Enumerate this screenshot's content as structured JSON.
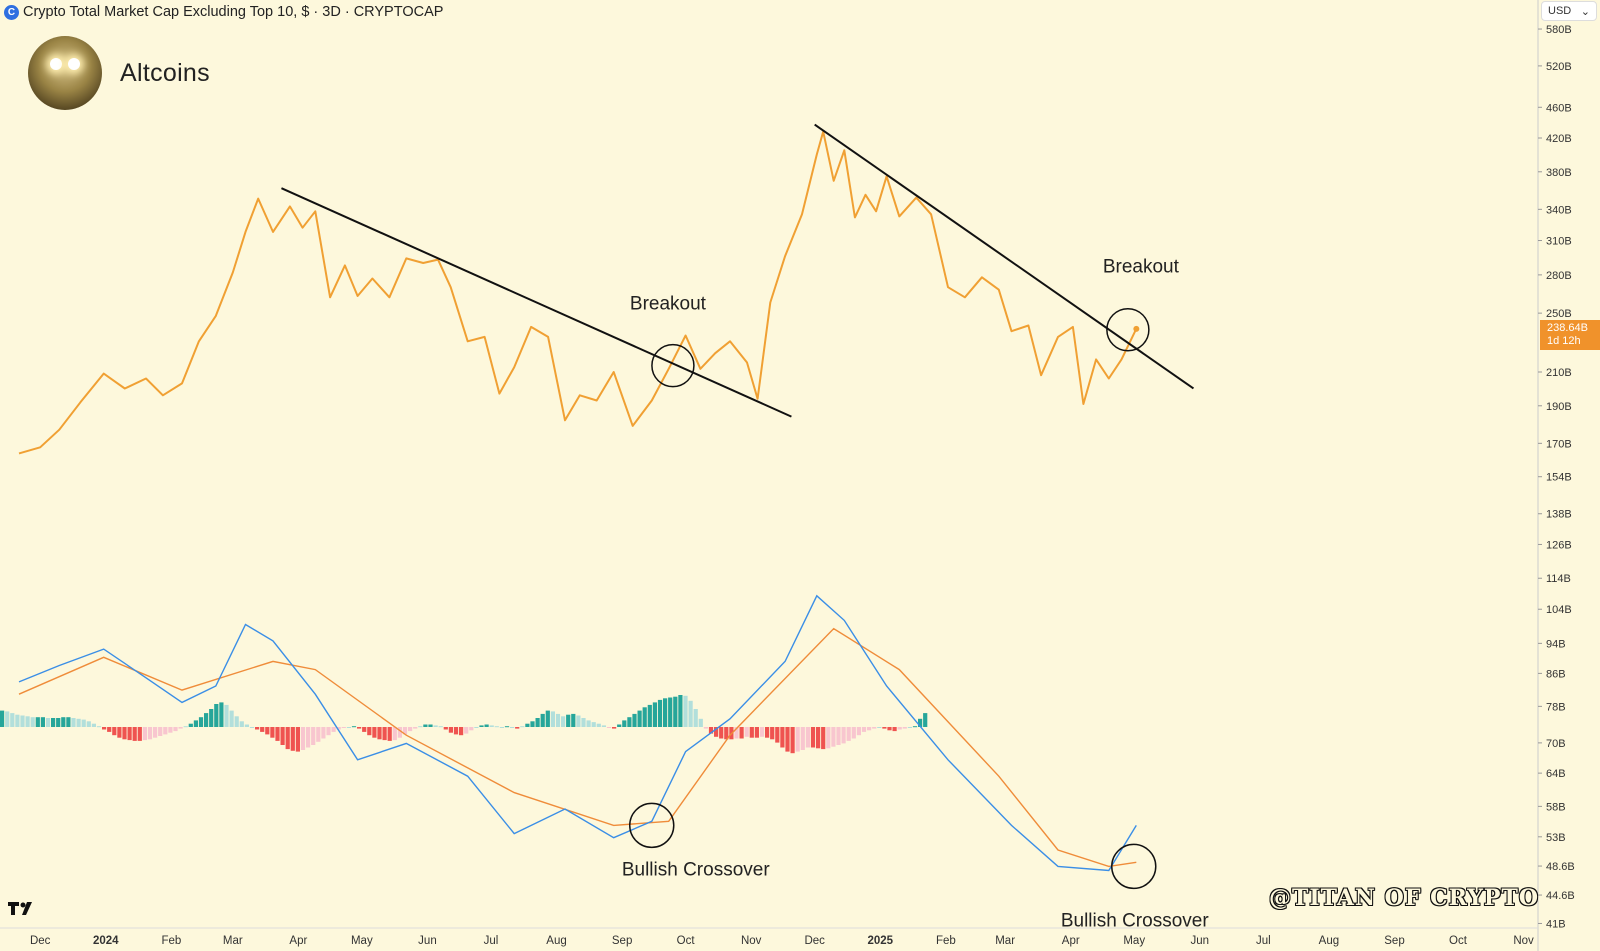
{
  "header": {
    "title": "Crypto Total Market Cap Excluding Top 10, $ · 3D · CRYPTOCAP",
    "currency": "USD"
  },
  "brand": {
    "name": "Altcoins"
  },
  "watermark": "@TITAN OF CRYPTO",
  "price_badge": {
    "value": "238.64B",
    "countdown": "1d 12h"
  },
  "colors": {
    "background": "#fdf8dc",
    "price_line": "#f0a033",
    "macd_line": "#3a8ee6",
    "signal_line": "#ef8c3a",
    "hist_pos_strong": "#26a69a",
    "hist_pos_weak": "#b2dfdb",
    "hist_neg_strong": "#ef5350",
    "hist_neg_weak": "#f8c6cf"
  },
  "chart_data": [
    {
      "type": "line",
      "scale": "log",
      "series": [
        {
          "values": [
            {
              "x": "2023-11-21",
              "y": 165
            },
            {
              "x": "2023-12-01",
              "y": 168
            },
            {
              "x": "2023-12-10",
              "y": 177
            },
            {
              "x": "2023-12-20",
              "y": 192
            },
            {
              "x": "2023-12-31",
              "y": 209
            },
            {
              "x": "2024-01-10",
              "y": 200
            },
            {
              "x": "2024-01-20",
              "y": 206
            },
            {
              "x": "2024-01-28",
              "y": 196
            },
            {
              "x": "2024-02-06",
              "y": 203
            },
            {
              "x": "2024-02-14",
              "y": 230
            },
            {
              "x": "2024-02-22",
              "y": 248
            },
            {
              "x": "2024-03-01",
              "y": 282
            },
            {
              "x": "2024-03-07",
              "y": 318
            },
            {
              "x": "2024-03-13",
              "y": 351
            },
            {
              "x": "2024-03-20",
              "y": 318
            },
            {
              "x": "2024-03-28",
              "y": 343
            },
            {
              "x": "2024-04-03",
              "y": 322
            },
            {
              "x": "2024-04-09",
              "y": 338
            },
            {
              "x": "2024-04-16",
              "y": 262
            },
            {
              "x": "2024-04-23",
              "y": 288
            },
            {
              "x": "2024-04-29",
              "y": 263
            },
            {
              "x": "2024-05-06",
              "y": 277
            },
            {
              "x": "2024-05-14",
              "y": 262
            },
            {
              "x": "2024-05-22",
              "y": 294
            },
            {
              "x": "2024-05-30",
              "y": 290
            },
            {
              "x": "2024-06-06",
              "y": 293
            },
            {
              "x": "2024-06-12",
              "y": 270
            },
            {
              "x": "2024-06-20",
              "y": 230
            },
            {
              "x": "2024-06-28",
              "y": 233
            },
            {
              "x": "2024-07-05",
              "y": 197
            },
            {
              "x": "2024-07-12",
              "y": 213
            },
            {
              "x": "2024-07-20",
              "y": 240
            },
            {
              "x": "2024-07-28",
              "y": 233
            },
            {
              "x": "2024-08-05",
              "y": 182
            },
            {
              "x": "2024-08-12",
              "y": 196
            },
            {
              "x": "2024-08-20",
              "y": 193
            },
            {
              "x": "2024-08-28",
              "y": 210
            },
            {
              "x": "2024-09-06",
              "y": 179
            },
            {
              "x": "2024-09-15",
              "y": 193
            },
            {
              "x": "2024-09-23",
              "y": 212
            },
            {
              "x": "2024-10-01",
              "y": 234
            },
            {
              "x": "2024-10-08",
              "y": 212
            },
            {
              "x": "2024-10-15",
              "y": 222
            },
            {
              "x": "2024-10-22",
              "y": 230
            },
            {
              "x": "2024-10-30",
              "y": 216
            },
            {
              "x": "2024-11-04",
              "y": 194
            },
            {
              "x": "2024-11-10",
              "y": 258
            },
            {
              "x": "2024-11-17",
              "y": 296
            },
            {
              "x": "2024-11-25",
              "y": 335
            },
            {
              "x": "2024-12-02",
              "y": 400
            },
            {
              "x": "2024-12-05",
              "y": 428
            },
            {
              "x": "2024-12-10",
              "y": 370
            },
            {
              "x": "2024-12-15",
              "y": 405
            },
            {
              "x": "2024-12-20",
              "y": 332
            },
            {
              "x": "2024-12-25",
              "y": 355
            },
            {
              "x": "2024-12-30",
              "y": 338
            },
            {
              "x": "2025-01-04",
              "y": 375
            },
            {
              "x": "2025-01-10",
              "y": 333
            },
            {
              "x": "2025-01-18",
              "y": 352
            },
            {
              "x": "2025-01-25",
              "y": 335
            },
            {
              "x": "2025-02-02",
              "y": 270
            },
            {
              "x": "2025-02-10",
              "y": 262
            },
            {
              "x": "2025-02-18",
              "y": 278
            },
            {
              "x": "2025-02-26",
              "y": 268
            },
            {
              "x": "2025-03-04",
              "y": 237
            },
            {
              "x": "2025-03-12",
              "y": 241
            },
            {
              "x": "2025-03-18",
              "y": 208
            },
            {
              "x": "2025-03-26",
              "y": 233
            },
            {
              "x": "2025-04-02",
              "y": 240
            },
            {
              "x": "2025-04-07",
              "y": 191
            },
            {
              "x": "2025-04-13",
              "y": 218
            },
            {
              "x": "2025-04-19",
              "y": 206
            },
            {
              "x": "2025-04-25",
              "y": 218
            },
            {
              "x": "2025-05-02",
              "y": 238.64
            }
          ]
        }
      ],
      "y_ticks": [
        "580B",
        "520B",
        "460B",
        "420B",
        "380B",
        "340B",
        "310B",
        "280B",
        "250B",
        "210B",
        "190B",
        "170B",
        "154B",
        "138B",
        "126B",
        "114B",
        "104B",
        "94B",
        "86B",
        "78B",
        "70B",
        "64B",
        "58B",
        "53B",
        "48.6B",
        "44.6B",
        "41B"
      ],
      "x_ticks": [
        "Dec",
        "2024",
        "Feb",
        "Mar",
        "Apr",
        "May",
        "Jun",
        "Jul",
        "Aug",
        "Sep",
        "Oct",
        "Nov",
        "Dec",
        "2025",
        "Feb",
        "Mar",
        "Apr",
        "May",
        "Jun",
        "Jul",
        "Aug",
        "Sep",
        "Oct",
        "Nov"
      ],
      "annotations": [
        {
          "text": "Breakout",
          "x": "2024-09-25",
          "y": 214
        },
        {
          "text": "Breakout",
          "x": "2025-04-28",
          "y": 238
        }
      ]
    },
    {
      "type": "line",
      "series": [
        {
          "values": [
            {
              "x": "2023-11-21",
              "y": 0.55
            },
            {
              "x": "2023-12-10",
              "y": 0.75
            },
            {
              "x": "2023-12-31",
              "y": 0.95
            },
            {
              "x": "2024-01-20",
              "y": 0.6
            },
            {
              "x": "2024-02-06",
              "y": 0.3
            },
            {
              "x": "2024-02-22",
              "y": 0.5
            },
            {
              "x": "2024-03-07",
              "y": 1.25
            },
            {
              "x": "2024-03-20",
              "y": 1.05
            },
            {
              "x": "2024-04-09",
              "y": 0.4
            },
            {
              "x": "2024-04-29",
              "y": -0.4
            },
            {
              "x": "2024-05-22",
              "y": -0.2
            },
            {
              "x": "2024-06-20",
              "y": -0.6
            },
            {
              "x": "2024-07-12",
              "y": -1.3
            },
            {
              "x": "2024-08-05",
              "y": -1.0
            },
            {
              "x": "2024-08-28",
              "y": -1.35
            },
            {
              "x": "2024-09-15",
              "y": -1.15
            },
            {
              "x": "2024-10-01",
              "y": -0.3
            },
            {
              "x": "2024-10-22",
              "y": 0.1
            },
            {
              "x": "2024-11-17",
              "y": 0.8
            },
            {
              "x": "2024-12-02",
              "y": 1.6
            },
            {
              "x": "2024-12-15",
              "y": 1.3
            },
            {
              "x": "2025-01-04",
              "y": 0.5
            },
            {
              "x": "2025-02-02",
              "y": -0.4
            },
            {
              "x": "2025-03-04",
              "y": -1.2
            },
            {
              "x": "2025-03-26",
              "y": -1.7
            },
            {
              "x": "2025-04-19",
              "y": -1.75
            },
            {
              "x": "2025-05-02",
              "y": -1.2
            }
          ]
        },
        {
          "values": [
            {
              "x": "2023-11-21",
              "y": 0.4
            },
            {
              "x": "2023-12-31",
              "y": 0.85
            },
            {
              "x": "2024-02-06",
              "y": 0.45
            },
            {
              "x": "2024-03-20",
              "y": 0.8
            },
            {
              "x": "2024-04-09",
              "y": 0.7
            },
            {
              "x": "2024-05-22",
              "y": -0.1
            },
            {
              "x": "2024-07-12",
              "y": -0.8
            },
            {
              "x": "2024-08-28",
              "y": -1.2
            },
            {
              "x": "2024-09-23",
              "y": -1.15
            },
            {
              "x": "2024-10-22",
              "y": -0.1
            },
            {
              "x": "2024-12-10",
              "y": 1.2
            },
            {
              "x": "2025-01-10",
              "y": 0.7
            },
            {
              "x": "2025-02-26",
              "y": -0.6
            },
            {
              "x": "2025-03-26",
              "y": -1.5
            },
            {
              "x": "2025-04-19",
              "y": -1.7
            },
            {
              "x": "2025-05-02",
              "y": -1.65
            }
          ]
        }
      ],
      "histogram": [
        0.2,
        0.19,
        0.17,
        0.15,
        0.14,
        0.13,
        0.12,
        0.12,
        0.12,
        0.11,
        0.11,
        0.11,
        0.12,
        0.12,
        0.11,
        0.1,
        0.09,
        0.07,
        0.04,
        0.01,
        -0.03,
        -0.06,
        -0.1,
        -0.13,
        -0.15,
        -0.16,
        -0.17,
        -0.17,
        -0.16,
        -0.15,
        -0.13,
        -0.11,
        -0.09,
        -0.07,
        -0.05,
        -0.02,
        0.01,
        0.04,
        0.08,
        0.12,
        0.17,
        0.22,
        0.28,
        0.3,
        0.27,
        0.2,
        0.13,
        0.07,
        0.03,
        0,
        -0.03,
        -0.06,
        -0.09,
        -0.13,
        -0.17,
        -0.22,
        -0.27,
        -0.29,
        -0.3,
        -0.28,
        -0.25,
        -0.22,
        -0.18,
        -0.14,
        -0.1,
        -0.06,
        -0.03,
        -0.01,
        0,
        0.01,
        -0.02,
        -0.06,
        -0.1,
        -0.13,
        -0.15,
        -0.16,
        -0.17,
        -0.16,
        -0.13,
        -0.09,
        -0.05,
        -0.02,
        0.01,
        0.03,
        0.03,
        0.02,
        0.01,
        -0.03,
        -0.07,
        -0.09,
        -0.1,
        -0.08,
        -0.04,
        0,
        0.02,
        0.03,
        0.02,
        0.01,
        0,
        0.01,
        0,
        -0.02,
        0.01,
        0.04,
        0.07,
        0.11,
        0.16,
        0.2,
        0.19,
        0.16,
        0.13,
        0.15,
        0.16,
        0.14,
        0.11,
        0.08,
        0.06,
        0.04,
        0.02,
        -0.01,
        -0.02,
        0.03,
        0.08,
        0.12,
        0.16,
        0.2,
        0.24,
        0.27,
        0.3,
        0.33,
        0.35,
        0.36,
        0.37,
        0.39,
        0.38,
        0.32,
        0.22,
        0.1,
        -0.02,
        -0.08,
        -0.12,
        -0.14,
        -0.15,
        -0.15,
        -0.14,
        -0.14,
        -0.12,
        -0.13,
        -0.13,
        -0.12,
        -0.13,
        -0.15,
        -0.19,
        -0.25,
        -0.3,
        -0.32,
        -0.3,
        -0.28,
        -0.25,
        -0.25,
        -0.26,
        -0.27,
        -0.26,
        -0.24,
        -0.22,
        -0.2,
        -0.17,
        -0.14,
        -0.1,
        -0.06,
        -0.04,
        -0.02,
        0,
        -0.02,
        -0.04,
        -0.05,
        -0.03,
        -0.02,
        0,
        0.01,
        0.1,
        0.17
      ],
      "annotations": [
        {
          "text": "Bullish Crossover",
          "x": "2024-09-15",
          "y": -1.2
        },
        {
          "text": "Bullish Crossover",
          "x": "2025-04-27",
          "y": -1.7
        }
      ]
    }
  ]
}
